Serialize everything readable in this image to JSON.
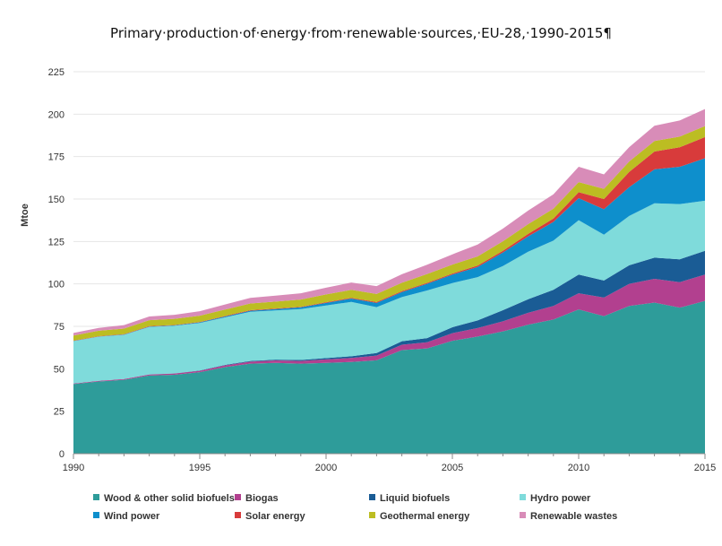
{
  "chart_data": {
    "type": "area",
    "stacked": true,
    "title": "Primary·production·of·energy·from·renewable·sources,·EU-28,·1990-2015¶",
    "xlabel": "",
    "ylabel": "Mtoe",
    "ylim": [
      0,
      225
    ],
    "yticks": [
      "0",
      "25",
      "50",
      "75",
      "100",
      "125",
      "150",
      "175",
      "200",
      "225"
    ],
    "xticks": [
      "1990",
      "1995",
      "2000",
      "2005",
      "2010",
      "2015"
    ],
    "grid": true,
    "legend_position": "bottom",
    "x": [
      1990,
      1991,
      1992,
      1993,
      1994,
      1995,
      1996,
      1997,
      1998,
      1999,
      2000,
      2001,
      2002,
      2003,
      2004,
      2005,
      2006,
      2007,
      2008,
      2009,
      2010,
      2011,
      2012,
      2013,
      2014,
      2015
    ],
    "series": [
      {
        "name": "Wood & other solid biofuels",
        "color": "#2e9c9a",
        "values": [
          41,
          42.5,
          43.5,
          46,
          46.5,
          48,
          51,
          53,
          53.5,
          53,
          53.5,
          54,
          55,
          61,
          62,
          66.5,
          69,
          72,
          76,
          79,
          85,
          81,
          87,
          89,
          86,
          90
        ]
      },
      {
        "name": "Biogas",
        "color": "#b2408f",
        "values": [
          0.3,
          0.4,
          0.5,
          0.6,
          0.7,
          0.8,
          1.0,
          1.2,
          1.4,
          1.6,
          2.0,
          2.4,
          2.8,
          3.2,
          3.6,
          4.5,
          5.0,
          6.0,
          7.0,
          8.0,
          9.5,
          11,
          13,
          14,
          15,
          15.5
        ]
      },
      {
        "name": "Liquid biofuels",
        "color": "#1a5c95",
        "values": [
          0,
          0,
          0,
          0.1,
          0.1,
          0.2,
          0.3,
          0.4,
          0.5,
          0.6,
          0.8,
          1.0,
          1.5,
          2.0,
          2.5,
          3.5,
          4.5,
          6.5,
          8.0,
          9.5,
          11,
          10,
          11,
          12.5,
          13.5,
          14
        ]
      },
      {
        "name": "Hydro power",
        "color": "#7fdbdb",
        "values": [
          25,
          26,
          26,
          28,
          28,
          28,
          28,
          29,
          29,
          30,
          31,
          32,
          27,
          26,
          28,
          26,
          25.5,
          26,
          28,
          29,
          32,
          27,
          29,
          32,
          32.5,
          29.5
        ]
      },
      {
        "name": "Wind power",
        "color": "#0e8fcc",
        "values": [
          0.1,
          0.1,
          0.2,
          0.2,
          0.3,
          0.4,
          0.5,
          0.6,
          0.8,
          1.0,
          1.5,
          2.0,
          2.5,
          3.0,
          4.0,
          5.0,
          6.0,
          8.0,
          9.0,
          11,
          13,
          15,
          17,
          20,
          22,
          25
        ]
      },
      {
        "name": "Solar energy",
        "color": "#d83b3b",
        "values": [
          0.2,
          0.2,
          0.2,
          0.2,
          0.2,
          0.2,
          0.3,
          0.3,
          0.3,
          0.3,
          0.4,
          0.4,
          0.5,
          0.5,
          0.5,
          0.6,
          0.8,
          1.0,
          1.5,
          2.0,
          3.5,
          6.0,
          9.0,
          10.5,
          11.5,
          12.5
        ]
      },
      {
        "name": "Geothermal energy",
        "color": "#bcbd22",
        "values": [
          3.0,
          3.2,
          3.3,
          3.5,
          3.6,
          3.7,
          3.8,
          4.0,
          4.1,
          4.3,
          4.6,
          4.7,
          4.8,
          5.0,
          5.2,
          5.3,
          5.4,
          5.6,
          5.7,
          5.8,
          6.0,
          6.0,
          6.1,
          6.2,
          6.3,
          6.5
        ]
      },
      {
        "name": "Renewable wastes",
        "color": "#d88cb8",
        "values": [
          1.5,
          1.7,
          2.0,
          2.2,
          2.4,
          2.6,
          3.0,
          3.3,
          3.5,
          3.7,
          4.0,
          4.3,
          4.6,
          5.0,
          5.5,
          6.0,
          7.0,
          7.5,
          8.0,
          8.5,
          9.0,
          8.5,
          8.5,
          9.0,
          9.5,
          10
        ]
      }
    ]
  }
}
